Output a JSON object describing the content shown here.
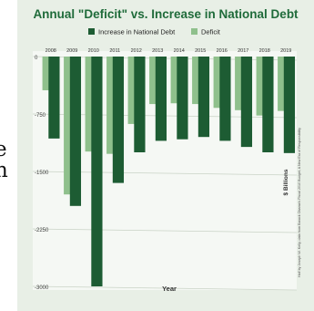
{
  "page": {
    "fragment_lines": [
      "e",
      "h"
    ]
  },
  "colors": {
    "background": "#e8efe6",
    "plot_background": "#f5f8f4",
    "title": "#1f6b3a",
    "increase": "#1d5c33",
    "deficit": "#8fc08c"
  },
  "chart_data": {
    "type": "bar",
    "title": "Annual \"Deficit\" vs. Increase in National Debt",
    "xlabel": "Year",
    "ylabel": "$ Billions",
    "source": "Half by Joseph W. Kelly, data from Barack Obama's Fiscal 2010 Budget, A New Era of Responsibility",
    "ylim": [
      -3000,
      0
    ],
    "yticks": [
      0,
      -750,
      -1500,
      -2250,
      -3000
    ],
    "categories": [
      "2008",
      "2009",
      "2010",
      "2011",
      "2012",
      "2013",
      "2014",
      "2015",
      "2016",
      "2017",
      "2018",
      "2019"
    ],
    "series": [
      {
        "name": "Increase in National Debt",
        "values": [
          -1070,
          -1950,
          -3000,
          -1650,
          -1250,
          -1100,
          -1080,
          -1050,
          -1100,
          -1180,
          -1250,
          -1260
        ]
      },
      {
        "name": "Deficit",
        "values": [
          -440,
          -1800,
          -1240,
          -1270,
          -880,
          -620,
          -610,
          -620,
          -670,
          -700,
          -770,
          -710
        ]
      }
    ],
    "legend_position": "top",
    "grid": true
  }
}
